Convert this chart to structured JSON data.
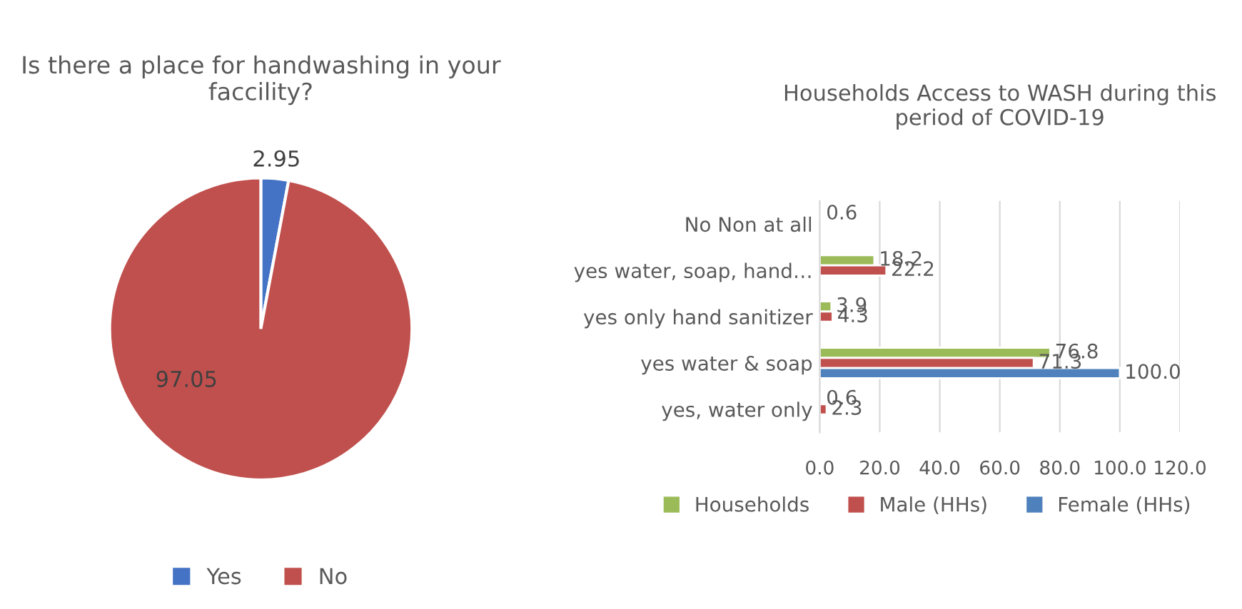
{
  "chart_data": [
    {
      "type": "pie",
      "title": "Is there a place for handwashing in your faccility?",
      "categories": [
        "Yes",
        "No"
      ],
      "values": [
        2.95,
        97.05
      ],
      "colors": [
        "#4472c4",
        "#c0504d"
      ],
      "data_labels": true,
      "legend": "bottom"
    },
    {
      "type": "bar",
      "orientation": "horizontal",
      "title": "Households Access to WASH during this period of COVID-19",
      "categories": [
        "No Non at all",
        "yes water, soap, hand…",
        "yes only hand sanitizer",
        "yes water & soap",
        "yes, water only"
      ],
      "series": [
        {
          "name": "Households",
          "color": "#9bbb59",
          "values": [
            0.6,
            18.2,
            3.9,
            76.8,
            0.6
          ],
          "value_labels": [
            "0.6",
            "18.2",
            "3.9",
            "76.8",
            "0.6"
          ]
        },
        {
          "name": "Male (HHs)",
          "color": "#c0504d",
          "values": [
            null,
            22.2,
            4.3,
            71.3,
            2.3
          ],
          "value_labels": [
            null,
            "22.2",
            "4.3",
            "71.3",
            "2.3"
          ]
        },
        {
          "name": "Female (HHs)",
          "color": "#4f81bd",
          "values": [
            null,
            null,
            null,
            100.0,
            null
          ],
          "value_labels": [
            null,
            null,
            null,
            "100.0",
            null
          ]
        }
      ],
      "xlim": [
        0,
        120
      ],
      "xticks": [
        {
          "value": 0,
          "label": "0.0"
        },
        {
          "value": 20,
          "label": "20.0"
        },
        {
          "value": 40,
          "label": "40.0"
        },
        {
          "value": 60,
          "label": "60.0"
        },
        {
          "value": 80,
          "label": "80.0"
        },
        {
          "value": 100,
          "label": "100.0"
        },
        {
          "value": 120,
          "label": "120.0"
        }
      ],
      "grid": "x",
      "legend": "bottom"
    }
  ]
}
